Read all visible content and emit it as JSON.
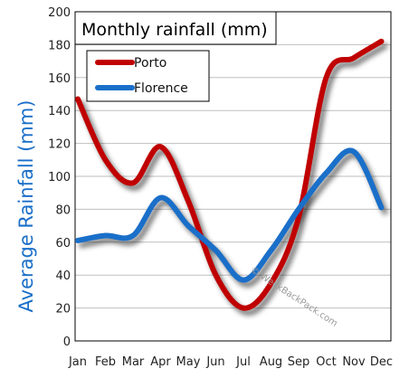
{
  "colors": {
    "porto": "#c00000",
    "florence": "#1a6fc9",
    "ylabel": "#1a6fc9",
    "grid": "#bfbfbf"
  },
  "watermark": "© WeekBackPack.com",
  "chart_data": {
    "type": "line",
    "title": "Monthly rainfall (mm)",
    "xlabel": "",
    "ylabel": "Average Rainfall (mm)",
    "categories": [
      "Jan",
      "Feb",
      "Mar",
      "Apr",
      "May",
      "Jun",
      "Jul",
      "Aug",
      "Sep",
      "Oct",
      "Nov",
      "Dec"
    ],
    "ylim": [
      0,
      200
    ],
    "yticks": [
      "0",
      "20",
      "40",
      "60",
      "80",
      "100",
      "120",
      "140",
      "160",
      "180",
      "200"
    ],
    "grid": true,
    "legend": "top-left",
    "series": [
      {
        "name": "Porto",
        "color": "#c00000",
        "values": [
          147,
          110,
          96,
          118,
          85,
          40,
          20,
          35,
          75,
          160,
          172,
          182
        ]
      },
      {
        "name": "Florence",
        "color": "#1a6fc9",
        "values": [
          61,
          64,
          64,
          87,
          70,
          55,
          37,
          55,
          80,
          102,
          115,
          81
        ]
      }
    ]
  }
}
